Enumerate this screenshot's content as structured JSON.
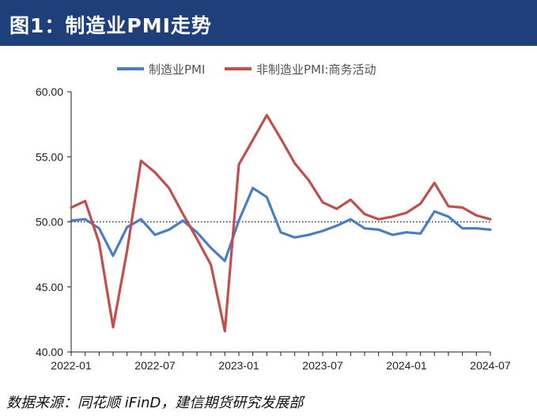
{
  "header": {
    "title": "图1：制造业PMI走势"
  },
  "source": "数据来源：同花顺 iFinD，建信期货研究发展部",
  "colors": {
    "header_bg": "#1f3f7a",
    "series_1": "#4a7dc4",
    "series_2": "#c0504d",
    "axis": "#222222"
  },
  "chart_data": {
    "type": "line",
    "title": "",
    "xlabel": "",
    "ylabel": "",
    "ylim": [
      40.0,
      60.0
    ],
    "yticks": [
      "60.00",
      "55.00",
      "50.00",
      "45.00",
      "40.00"
    ],
    "xtick_labels": [
      "2022-01",
      "2022-07",
      "2023-01",
      "2023-07",
      "2024-01",
      "2024-07"
    ],
    "xtick_index": [
      0,
      6,
      12,
      18,
      24,
      30
    ],
    "reference_line": 50,
    "legend_position": "top-center",
    "grid": false,
    "x": [
      "2022-01",
      "2022-02",
      "2022-03",
      "2022-04",
      "2022-05",
      "2022-06",
      "2022-07",
      "2022-08",
      "2022-09",
      "2022-10",
      "2022-11",
      "2022-12",
      "2023-01",
      "2023-02",
      "2023-03",
      "2023-04",
      "2023-05",
      "2023-06",
      "2023-07",
      "2023-08",
      "2023-09",
      "2023-10",
      "2023-11",
      "2023-12",
      "2024-01",
      "2024-02",
      "2024-03",
      "2024-04",
      "2024-05",
      "2024-06",
      "2024-07"
    ],
    "series": [
      {
        "name": "制造业PMI",
        "color": "#4a7dc4",
        "values": [
          50.1,
          50.2,
          49.5,
          47.4,
          49.6,
          50.2,
          49.0,
          49.4,
          50.1,
          49.2,
          48.0,
          47.0,
          50.1,
          52.6,
          51.9,
          49.2,
          48.8,
          49.0,
          49.3,
          49.7,
          50.2,
          49.5,
          49.4,
          49.0,
          49.2,
          49.1,
          50.8,
          50.4,
          49.5,
          49.5,
          49.4
        ]
      },
      {
        "name": "非制造业PMI:商务活动",
        "color": "#c0504d",
        "values": [
          51.1,
          51.6,
          48.4,
          41.9,
          47.8,
          54.7,
          53.8,
          52.6,
          50.6,
          48.7,
          46.7,
          41.6,
          54.4,
          56.3,
          58.2,
          56.4,
          54.5,
          53.2,
          51.5,
          51.0,
          51.7,
          50.6,
          50.2,
          50.4,
          50.7,
          51.4,
          53.0,
          51.2,
          51.1,
          50.5,
          50.2
        ]
      }
    ]
  }
}
